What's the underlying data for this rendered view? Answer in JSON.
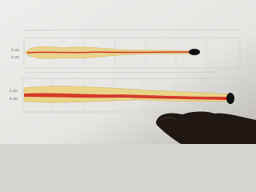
{
  "panels": [
    {
      "y_labels": [
        "2 cm",
        "4 cm"
      ]
    },
    {
      "y_labels": [
        "2 cm",
        "4 cm"
      ]
    }
  ]
}
